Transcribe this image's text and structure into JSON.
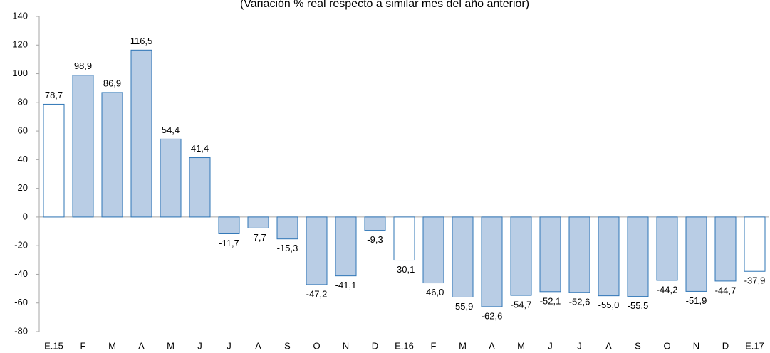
{
  "chart_data": {
    "type": "bar",
    "subtitle": "(Variación % real respecto a similar mes del año anterior)",
    "categories": [
      "E.15",
      "F",
      "M",
      "A",
      "M",
      "J",
      "J",
      "A",
      "S",
      "O",
      "N",
      "D",
      "E.16",
      "F",
      "M",
      "A",
      "M",
      "J",
      "J",
      "A",
      "S",
      "O",
      "N",
      "D",
      "E.17"
    ],
    "values": [
      78.7,
      98.9,
      86.9,
      116.5,
      54.4,
      41.4,
      -11.7,
      -7.7,
      -15.3,
      -47.2,
      -41.1,
      -9.3,
      -30.1,
      -46.0,
      -55.9,
      -62.6,
      -54.7,
      -52.1,
      -52.6,
      -55.0,
      -55.5,
      -44.2,
      -51.9,
      -44.7,
      -37.9
    ],
    "value_labels": [
      "78,7",
      "98,9",
      "86,9",
      "116,5",
      "54,4",
      "41,4",
      "-11,7",
      "-7,7",
      "-15,3",
      "-47,2",
      "-41,1",
      "-9,3",
      "-30,1",
      "-46,0",
      "-55,9",
      "-62,6",
      "-54,7",
      "-52,1",
      "-52,6",
      "-55,0",
      "-55,5",
      "-44,2",
      "-51,9",
      "-44,7",
      "-37,9"
    ],
    "colors": [
      "#ffffff",
      "#b9cde5",
      "#b9cde5",
      "#b9cde5",
      "#b9cde5",
      "#b9cde5",
      "#b9cde5",
      "#b9cde5",
      "#b9cde5",
      "#b9cde5",
      "#b9cde5",
      "#b9cde5",
      "#ffffff",
      "#b9cde5",
      "#b9cde5",
      "#b9cde5",
      "#b9cde5",
      "#b9cde5",
      "#b9cde5",
      "#b9cde5",
      "#b9cde5",
      "#b9cde5",
      "#b9cde5",
      "#b9cde5",
      "#ffffff"
    ],
    "edge_color": "#2e75b6",
    "ylim": [
      -80,
      140
    ],
    "yticks": [
      -80,
      -60,
      -40,
      -20,
      0,
      20,
      40,
      60,
      80,
      100,
      120,
      140
    ],
    "grid": false
  }
}
